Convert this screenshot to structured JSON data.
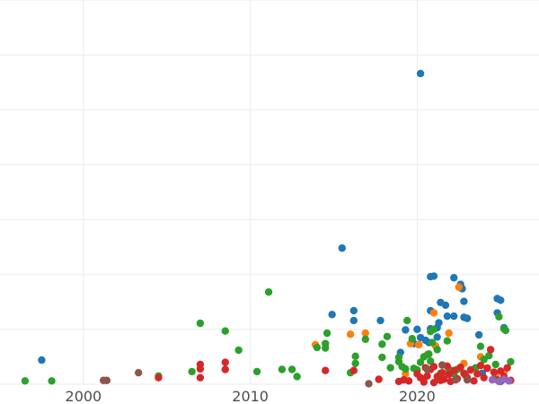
{
  "chart_data": {
    "type": "scatter",
    "title": "",
    "xlabel": "",
    "ylabel": "",
    "xlim": [
      1995.0,
      2027.3
    ],
    "ylim": [
      0,
      70
    ],
    "grid": true,
    "x_ticks": [
      2000,
      2010,
      2020
    ],
    "x_tick_labels": [
      "2000",
      "2010",
      "2020"
    ],
    "y_gridlines": [
      0,
      10,
      20,
      30,
      40,
      50,
      60,
      70
    ],
    "series": [
      {
        "color": "#1f77b4",
        "points": [
          [
            1997.5,
            4.4
          ],
          [
            2014.9,
            12.7
          ],
          [
            2015.5,
            24.8
          ],
          [
            2016.2,
            13.4
          ],
          [
            2016.2,
            11.6
          ],
          [
            2017.8,
            11.6
          ],
          [
            2019.0,
            5.8
          ],
          [
            2019.3,
            9.9
          ],
          [
            2019.8,
            7.4
          ],
          [
            2020.0,
            10.0
          ],
          [
            2020.2,
            8.5
          ],
          [
            2020.2,
            56.6
          ],
          [
            2020.5,
            8.0
          ],
          [
            2020.7,
            7.6
          ],
          [
            2020.8,
            10.1
          ],
          [
            2020.8,
            13.4
          ],
          [
            2020.8,
            19.6
          ],
          [
            2021.0,
            19.7
          ],
          [
            2021.2,
            10.3
          ],
          [
            2021.2,
            8.6
          ],
          [
            2021.3,
            11.2
          ],
          [
            2021.4,
            14.9
          ],
          [
            2021.7,
            14.4
          ],
          [
            2021.8,
            12.4
          ],
          [
            2022.2,
            12.4
          ],
          [
            2022.2,
            19.4
          ],
          [
            2022.6,
            18.2
          ],
          [
            2022.7,
            17.4
          ],
          [
            2022.8,
            15.1
          ],
          [
            2022.8,
            12.2
          ],
          [
            2023.0,
            12.0
          ],
          [
            2023.7,
            9.0
          ],
          [
            2024.8,
            13.0
          ],
          [
            2024.8,
            15.6
          ],
          [
            2025.0,
            15.3
          ],
          [
            2025.2,
            10.3
          ],
          [
            2023.9,
            2.0
          ],
          [
            2025.0,
            0.5
          ]
        ]
      },
      {
        "color": "#ff7f0e",
        "points": [
          [
            2013.9,
            7.2
          ],
          [
            2016.0,
            9.1
          ],
          [
            2016.9,
            9.3
          ],
          [
            2019.3,
            1.9
          ],
          [
            2019.6,
            7.4
          ],
          [
            2020.1,
            7.2
          ],
          [
            2020.6,
            5.4
          ],
          [
            2021.1,
            7.0
          ],
          [
            2021.0,
            13.0
          ],
          [
            2021.5,
            3.5
          ],
          [
            2021.9,
            9.3
          ],
          [
            2022.5,
            17.7
          ],
          [
            2022.8,
            3.8
          ],
          [
            2023.8,
            5.0
          ],
          [
            2024.2,
            3.0
          ],
          [
            2024.7,
            1.6
          ],
          [
            2025.2,
            2.2
          ]
        ]
      },
      {
        "color": "#2ca02c",
        "points": [
          [
            1996.5,
            0.6
          ],
          [
            1998.1,
            0.6
          ],
          [
            2004.5,
            1.5
          ],
          [
            2006.5,
            2.3
          ],
          [
            2007.0,
            11.1
          ],
          [
            2008.5,
            9.7
          ],
          [
            2009.3,
            6.2
          ],
          [
            2010.4,
            2.3
          ],
          [
            2011.1,
            16.8
          ],
          [
            2011.9,
            2.7
          ],
          [
            2012.5,
            2.7
          ],
          [
            2012.8,
            1.4
          ],
          [
            2014.0,
            6.7
          ],
          [
            2014.5,
            7.4
          ],
          [
            2014.5,
            6.6
          ],
          [
            2014.6,
            9.3
          ],
          [
            2016.0,
            2.1
          ],
          [
            2016.3,
            5.1
          ],
          [
            2016.3,
            3.8
          ],
          [
            2016.9,
            8.2
          ],
          [
            2017.9,
            7.3
          ],
          [
            2017.9,
            4.9
          ],
          [
            2018.2,
            8.7
          ],
          [
            2018.4,
            3.0
          ],
          [
            2018.9,
            4.9
          ],
          [
            2018.9,
            4.1
          ],
          [
            2019.1,
            3.2
          ],
          [
            2019.3,
            2.8
          ],
          [
            2019.4,
            11.6
          ],
          [
            2019.7,
            8.3
          ],
          [
            2019.8,
            2.9
          ],
          [
            2020.0,
            2.6
          ],
          [
            2020.2,
            4.0
          ],
          [
            2020.4,
            5.0
          ],
          [
            2020.7,
            5.5
          ],
          [
            2020.8,
            9.6
          ],
          [
            2020.8,
            4.2
          ],
          [
            2020.9,
            7.6
          ],
          [
            2021.0,
            10.0
          ],
          [
            2021.2,
            6.3
          ],
          [
            2021.4,
            2.0
          ],
          [
            2021.8,
            7.9
          ],
          [
            2021.9,
            2.7
          ],
          [
            2022.2,
            1.9
          ],
          [
            2022.4,
            2.7
          ],
          [
            2022.9,
            1.6
          ],
          [
            2023.5,
            3.0
          ],
          [
            2023.8,
            6.9
          ],
          [
            2024.0,
            4.5
          ],
          [
            2024.3,
            5.2
          ],
          [
            2024.7,
            3.6
          ],
          [
            2024.9,
            12.3
          ],
          [
            2025.2,
            10.1
          ],
          [
            2025.3,
            9.8
          ],
          [
            2025.6,
            4.1
          ]
        ]
      },
      {
        "color": "#d62728",
        "points": [
          [
            2004.5,
            1.2
          ],
          [
            2007.0,
            3.6
          ],
          [
            2007.0,
            2.8
          ],
          [
            2007.0,
            1.2
          ],
          [
            2008.5,
            4.0
          ],
          [
            2008.5,
            2.7
          ],
          [
            2014.5,
            2.5
          ],
          [
            2016.2,
            2.5
          ],
          [
            2017.7,
            0.9
          ],
          [
            2018.9,
            0.5
          ],
          [
            2019.2,
            0.8
          ],
          [
            2019.5,
            0.6
          ],
          [
            2020.0,
            1.9
          ],
          [
            2020.2,
            1.2
          ],
          [
            2020.4,
            0.4
          ],
          [
            2020.5,
            3.0
          ],
          [
            2020.6,
            1.5
          ],
          [
            2020.8,
            2.7
          ],
          [
            2021.0,
            0.3
          ],
          [
            2021.0,
            3.2
          ],
          [
            2021.2,
            1.4
          ],
          [
            2021.4,
            0.7
          ],
          [
            2021.5,
            2.1
          ],
          [
            2021.6,
            0.9
          ],
          [
            2021.8,
            3.3
          ],
          [
            2021.9,
            1.8
          ],
          [
            2022.0,
            0.5
          ],
          [
            2022.2,
            2.5
          ],
          [
            2022.4,
            1.0
          ],
          [
            2022.6,
            3.1
          ],
          [
            2022.8,
            2.0
          ],
          [
            2023.0,
            1.2
          ],
          [
            2023.2,
            2.6
          ],
          [
            2023.4,
            0.6
          ],
          [
            2023.6,
            1.9
          ],
          [
            2023.8,
            3.4
          ],
          [
            2024.0,
            1.2
          ],
          [
            2024.2,
            2.9
          ],
          [
            2024.4,
            6.3
          ],
          [
            2024.6,
            2.2
          ],
          [
            2024.8,
            0.8
          ],
          [
            2025.0,
            2.4
          ],
          [
            2025.2,
            1.4
          ],
          [
            2025.4,
            3.0
          ],
          [
            2025.6,
            0.7
          ]
        ]
      },
      {
        "color": "#8c564b",
        "points": [
          [
            2001.2,
            0.7
          ],
          [
            2001.4,
            0.7
          ],
          [
            2003.3,
            2.1
          ],
          [
            2017.1,
            0.1
          ],
          [
            2020.6,
            2.7
          ],
          [
            2021.5,
            3.5
          ],
          [
            2022.3,
            0.8
          ],
          [
            2023.0,
            0.8
          ],
          [
            2024.6,
            1.0
          ]
        ]
      },
      {
        "color": "#9467bd",
        "points": [
          [
            2024.5,
            0.8
          ],
          [
            2024.9,
            0.5
          ],
          [
            2025.2,
            0.9
          ],
          [
            2025.5,
            0.6
          ]
        ]
      }
    ]
  }
}
